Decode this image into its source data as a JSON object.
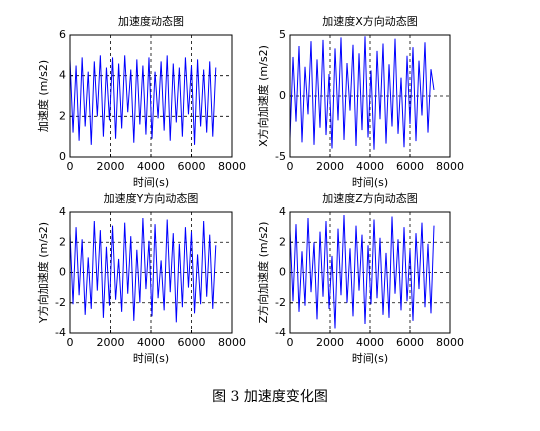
{
  "caption": "图 3 加速度变化图",
  "chart_data": [
    {
      "type": "line",
      "title": "加速度动态图",
      "xlabel": "时间(s)",
      "ylabel": "加速度 (m/s2)",
      "x": [
        0,
        150,
        300,
        450,
        600,
        750,
        900,
        1050,
        1200,
        1350,
        1500,
        1650,
        1800,
        1950,
        2100,
        2250,
        2400,
        2550,
        2700,
        2850,
        3000,
        3150,
        3300,
        3450,
        3600,
        3750,
        3900,
        4050,
        4200,
        4350,
        4500,
        4650,
        4800,
        4950,
        5100,
        5250,
        5400,
        5550,
        5700,
        5850,
        6000,
        6150,
        6300,
        6450,
        6600,
        6750,
        6900,
        7050,
        7200
      ],
      "series": [
        {
          "color": "#0000ff",
          "values": [
            4.8,
            1.2,
            4.5,
            0.8,
            4.9,
            1.5,
            4.2,
            0.6,
            4.7,
            2.0,
            5.0,
            1.0,
            4.4,
            1.8,
            4.9,
            0.9,
            4.6,
            1.4,
            5.0,
            2.2,
            4.3,
            0.7,
            4.8,
            1.6,
            4.5,
            1.1,
            4.9,
            0.9,
            4.2,
            1.9,
            4.7,
            1.3,
            5.0,
            0.8,
            4.6,
            1.7,
            4.4,
            1.0,
            4.9,
            2.1,
            4.5,
            0.6,
            4.8,
            1.5,
            4.3,
            1.2,
            4.7,
            1.0,
            4.4
          ]
        }
      ],
      "xlim": [
        0,
        8000
      ],
      "xticks": [
        0,
        2000,
        4000,
        6000,
        8000
      ],
      "ylim": [
        0,
        6
      ],
      "yticks": [
        0,
        2,
        4,
        6
      ],
      "grid": true
    },
    {
      "type": "line",
      "title": "加速度X方向动态图",
      "xlabel": "时间(s)",
      "ylabel": "X方向加速度 (m/s2)",
      "x": [
        0,
        150,
        300,
        450,
        600,
        750,
        900,
        1050,
        1200,
        1350,
        1500,
        1650,
        1800,
        1950,
        2100,
        2250,
        2400,
        2550,
        2700,
        2850,
        3000,
        3150,
        3300,
        3450,
        3600,
        3750,
        3900,
        4050,
        4200,
        4350,
        4500,
        4650,
        4800,
        4950,
        5100,
        5250,
        5400,
        5550,
        5700,
        5850,
        6000,
        6150,
        6300,
        6450,
        6600,
        6750,
        6900,
        7050,
        7200
      ],
      "series": [
        {
          "color": "#0000ff",
          "values": [
            -3.5,
            3.2,
            -2.1,
            4.1,
            -3.8,
            2.4,
            -1.5,
            4.5,
            -4.0,
            3.0,
            -2.6,
            4.6,
            -3.2,
            1.8,
            -4.3,
            3.9,
            -2.0,
            4.8,
            -3.6,
            2.7,
            -1.2,
            4.2,
            -4.1,
            3.5,
            -2.8,
            4.9,
            -3.4,
            2.1,
            -4.4,
            3.7,
            -1.9,
            4.3,
            -3.9,
            2.6,
            -2.5,
            4.7,
            -3.1,
            1.5,
            -4.2,
            3.3,
            -2.3,
            4.0,
            -3.7,
            2.9,
            -1.6,
            4.4,
            -3.0,
            2.2,
            0.5
          ]
        }
      ],
      "xlim": [
        0,
        8000
      ],
      "xticks": [
        0,
        2000,
        4000,
        6000,
        8000
      ],
      "ylim": [
        -5,
        5
      ],
      "yticks": [
        -5,
        0,
        5
      ],
      "grid": true
    },
    {
      "type": "line",
      "title": "加速度Y方向动态图",
      "xlabel": "时间(s)",
      "ylabel": "Y方向加速度 (m/s2)",
      "x": [
        0,
        150,
        300,
        450,
        600,
        750,
        900,
        1050,
        1200,
        1350,
        1500,
        1650,
        1800,
        1950,
        2100,
        2250,
        2400,
        2550,
        2700,
        2850,
        3000,
        3150,
        3300,
        3450,
        3600,
        3750,
        3900,
        4050,
        4200,
        4350,
        4500,
        4650,
        4800,
        4950,
        5100,
        5250,
        5400,
        5550,
        5700,
        5850,
        6000,
        6150,
        6300,
        6450,
        6600,
        6750,
        6900,
        7050,
        7200
      ],
      "series": [
        {
          "color": "#0000ff",
          "values": [
            2.6,
            -2.1,
            3.0,
            -1.5,
            2.2,
            -2.8,
            1.0,
            -2.4,
            3.4,
            -1.2,
            2.8,
            -3.0,
            1.7,
            -2.2,
            3.1,
            -1.8,
            0.9,
            -2.6,
            3.3,
            -1.4,
            2.4,
            -3.2,
            1.5,
            -2.0,
            3.6,
            -1.1,
            2.1,
            -2.9,
            3.2,
            -1.7,
            0.8,
            -2.5,
            3.5,
            -1.3,
            2.6,
            -3.3,
            1.9,
            -2.3,
            3.0,
            -1.0,
            2.7,
            -2.7,
            1.2,
            -2.1,
            3.4,
            -1.6,
            2.5,
            -2.4,
            1.8
          ]
        }
      ],
      "xlim": [
        0,
        8000
      ],
      "xticks": [
        0,
        2000,
        4000,
        6000,
        8000
      ],
      "ylim": [
        -4,
        4
      ],
      "yticks": [
        -4,
        -2,
        0,
        2,
        4
      ],
      "grid": true
    },
    {
      "type": "line",
      "title": "加速度Z方向动态图",
      "xlabel": "时间(s)",
      "ylabel": "Z方向加速度 (m/s2)",
      "x": [
        0,
        150,
        300,
        450,
        600,
        750,
        900,
        1050,
        1200,
        1350,
        1500,
        1650,
        1800,
        1950,
        2100,
        2250,
        2400,
        2550,
        2700,
        2850,
        3000,
        3150,
        3300,
        3450,
        3600,
        3750,
        3900,
        4050,
        4200,
        4350,
        4500,
        4650,
        4800,
        4950,
        5100,
        5250,
        5400,
        5550,
        5700,
        5850,
        6000,
        6150,
        6300,
        6450,
        6600,
        6750,
        6900,
        7050,
        7200
      ],
      "series": [
        {
          "color": "#0000ff",
          "values": [
            2.8,
            -1.9,
            3.2,
            -2.6,
            1.4,
            -2.2,
            3.6,
            -1.3,
            2.0,
            -3.1,
            2.7,
            -1.6,
            3.4,
            -2.4,
            1.1,
            -3.7,
            2.9,
            -1.5,
            3.8,
            -2.0,
            1.6,
            -2.9,
            3.1,
            -1.2,
            2.5,
            -3.4,
            1.8,
            -2.1,
            3.5,
            -1.7,
            2.3,
            -2.8,
            1.3,
            -3.0,
            3.7,
            -1.4,
            2.2,
            -2.5,
            3.0,
            -1.9,
            1.5,
            -3.2,
            2.6,
            -1.1,
            3.3,
            -2.3,
            1.9,
            -2.7,
            3.1
          ]
        }
      ],
      "xlim": [
        0,
        8000
      ],
      "xticks": [
        0,
        2000,
        4000,
        6000,
        8000
      ],
      "ylim": [
        -4,
        4
      ],
      "yticks": [
        -4,
        -2,
        0,
        2,
        4
      ],
      "grid": true
    }
  ]
}
